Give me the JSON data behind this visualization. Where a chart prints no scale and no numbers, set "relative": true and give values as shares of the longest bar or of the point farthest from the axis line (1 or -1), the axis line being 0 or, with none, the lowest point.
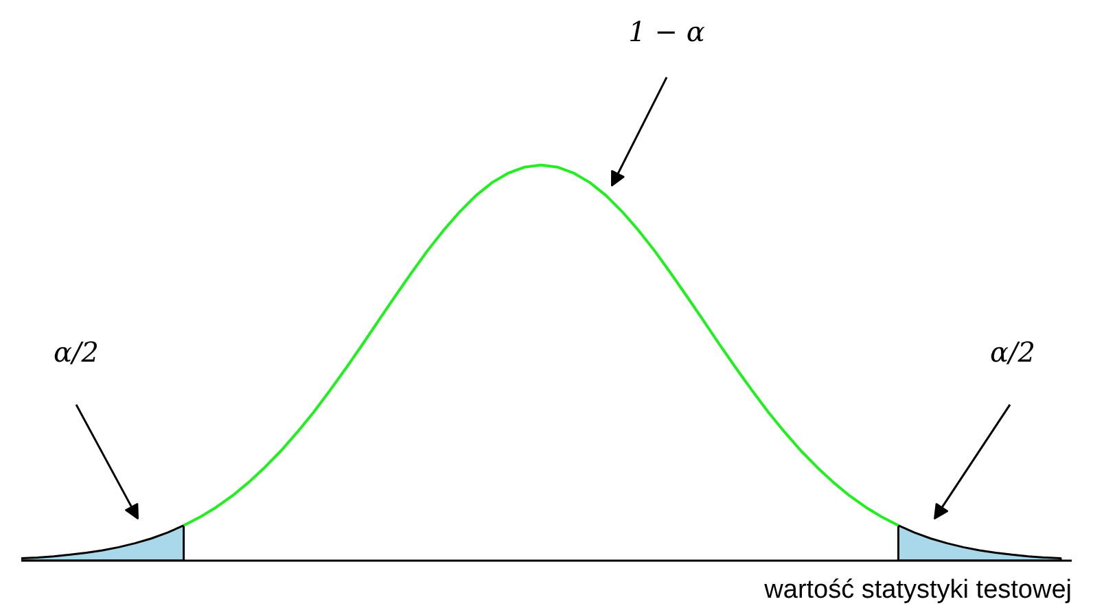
{
  "chart_data": {
    "type": "line",
    "relative": true,
    "xlabel": "wartość statystyki testowej",
    "annotations": [
      "1 − α",
      "α/2",
      "α/2"
    ],
    "categories": [
      null,
      null,
      null,
      null,
      null,
      null,
      null,
      null,
      null,
      null,
      null,
      null,
      null,
      null,
      null,
      null,
      null,
      null,
      null,
      null,
      null,
      null,
      null,
      null,
      null,
      null,
      null,
      null,
      null,
      null,
      null,
      null,
      null,
      null,
      null,
      null,
      null,
      null,
      null,
      null,
      null,
      null,
      null,
      null,
      null,
      null,
      null,
      null,
      null,
      null,
      null,
      null,
      null,
      null,
      null,
      null,
      null,
      null,
      null,
      null,
      null,
      null,
      null,
      null,
      null
    ],
    "series": [
      {
        "type": "area",
        "color": "#a8d8ea",
        "values": [
          0.006,
          0.008,
          0.011,
          0.015,
          0.02,
          0.026,
          0.034,
          0.044,
          0.056,
          0.071,
          0.089,
          null,
          null,
          null,
          null,
          null,
          null,
          null,
          null,
          null,
          null,
          null,
          null,
          null,
          null,
          null,
          null,
          null,
          null,
          null,
          null,
          null,
          null,
          null,
          null,
          null,
          null,
          null,
          null,
          null,
          null,
          null,
          null,
          null,
          null,
          null,
          null,
          null,
          null,
          null,
          null,
          null,
          null,
          null,
          null,
          null,
          null,
          null,
          null,
          null,
          null,
          null,
          null,
          null,
          null
        ]
      },
      {
        "type": "area",
        "color": "#a8d8ea",
        "values": [
          null,
          null,
          null,
          null,
          null,
          null,
          null,
          null,
          null,
          null,
          null,
          null,
          null,
          null,
          null,
          null,
          null,
          null,
          null,
          null,
          null,
          null,
          null,
          null,
          null,
          null,
          null,
          null,
          null,
          null,
          null,
          null,
          null,
          null,
          null,
          null,
          null,
          null,
          null,
          null,
          null,
          null,
          null,
          null,
          null,
          null,
          null,
          null,
          null,
          null,
          null,
          null,
          null,
          null,
          0.089,
          0.071,
          0.056,
          0.044,
          0.034,
          0.026,
          0.02,
          0.015,
          0.011,
          0.008,
          0.006
        ]
      },
      {
        "color": "#22ee22",
        "values": [
          null,
          null,
          null,
          null,
          null,
          null,
          null,
          null,
          null,
          null,
          0.089,
          0.11,
          0.135,
          0.164,
          0.198,
          0.236,
          0.278,
          0.325,
          0.375,
          0.43,
          0.487,
          0.546,
          0.607,
          0.667,
          0.726,
          0.783,
          0.835,
          0.882,
          0.923,
          0.956,
          0.98,
          0.995,
          1.0,
          0.995,
          0.98,
          0.956,
          0.923,
          0.882,
          0.835,
          0.783,
          0.726,
          0.667,
          0.607,
          0.546,
          0.487,
          0.43,
          0.375,
          0.325,
          0.278,
          0.236,
          0.198,
          0.164,
          0.135,
          0.11,
          0.089,
          null,
          null,
          null,
          null,
          null,
          null,
          null,
          null,
          null,
          null
        ]
      }
    ]
  }
}
